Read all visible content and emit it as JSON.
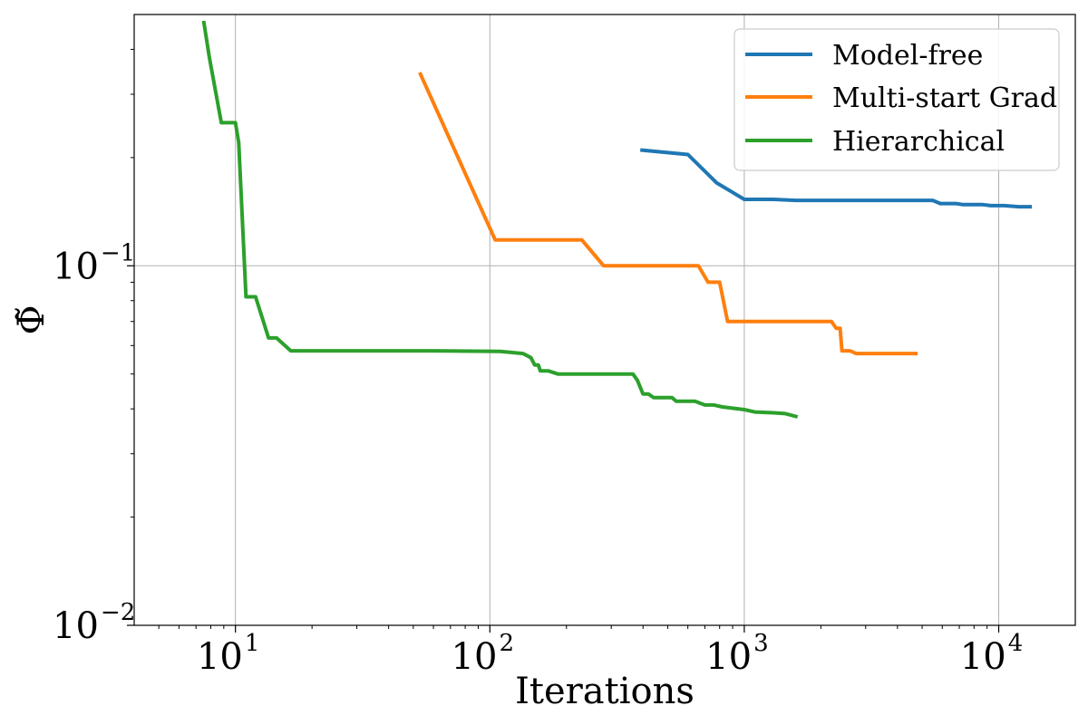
{
  "chart_data": {
    "type": "line",
    "title": "",
    "xlabel": "Iterations",
    "ylabel": "Φ̃",
    "xscale": "log",
    "yscale": "log",
    "xlim": [
      4,
      20000
    ],
    "ylim": [
      0.01,
      0.5
    ],
    "grid": true,
    "legend_position": "top-right",
    "x_major_ticks": [
      {
        "value": 10,
        "base": "10",
        "exp": "1"
      },
      {
        "value": 100,
        "base": "10",
        "exp": "2"
      },
      {
        "value": 1000,
        "base": "10",
        "exp": "3"
      },
      {
        "value": 10000,
        "base": "10",
        "exp": "4"
      }
    ],
    "y_major_ticks": [
      {
        "value": 0.01,
        "base": "10",
        "exp": "−2"
      },
      {
        "value": 0.1,
        "base": "10",
        "exp": "−1"
      }
    ],
    "series": [
      {
        "name": "Model-free",
        "color": "#1f77b4",
        "points": [
          [
            390,
            0.21
          ],
          [
            600,
            0.204
          ],
          [
            780,
            0.17
          ],
          [
            900,
            0.16
          ],
          [
            1000,
            0.153
          ],
          [
            1300,
            0.153
          ],
          [
            1600,
            0.152
          ],
          [
            3000,
            0.152
          ],
          [
            5500,
            0.152
          ],
          [
            5900,
            0.149
          ],
          [
            6800,
            0.149
          ],
          [
            7200,
            0.148
          ],
          [
            8600,
            0.148
          ],
          [
            9300,
            0.147
          ],
          [
            10500,
            0.147
          ],
          [
            12000,
            0.146
          ],
          [
            13500,
            0.146
          ]
        ]
      },
      {
        "name": "Multi-start Grad",
        "color": "#ff7f0e",
        "points": [
          [
            53,
            0.345
          ],
          [
            105,
            0.118
          ],
          [
            230,
            0.118
          ],
          [
            280,
            0.1
          ],
          [
            660,
            0.1
          ],
          [
            720,
            0.09
          ],
          [
            800,
            0.09
          ],
          [
            860,
            0.07
          ],
          [
            2200,
            0.07
          ],
          [
            2300,
            0.067
          ],
          [
            2380,
            0.067
          ],
          [
            2420,
            0.058
          ],
          [
            2600,
            0.058
          ],
          [
            2750,
            0.057
          ],
          [
            4800,
            0.057
          ]
        ]
      },
      {
        "name": "Hierarchical",
        "color": "#2ca02c",
        "points": [
          [
            7.5,
            0.48
          ],
          [
            7.9,
            0.38
          ],
          [
            8.8,
            0.25
          ],
          [
            10,
            0.25
          ],
          [
            10.3,
            0.22
          ],
          [
            11,
            0.082
          ],
          [
            12,
            0.082
          ],
          [
            13.5,
            0.063
          ],
          [
            14.5,
            0.063
          ],
          [
            16.5,
            0.058
          ],
          [
            60,
            0.058
          ],
          [
            110,
            0.0578
          ],
          [
            135,
            0.057
          ],
          [
            145,
            0.0555
          ],
          [
            150,
            0.053
          ],
          [
            155,
            0.053
          ],
          [
            158,
            0.051
          ],
          [
            170,
            0.051
          ],
          [
            185,
            0.05
          ],
          [
            200,
            0.05
          ],
          [
            365,
            0.05
          ],
          [
            380,
            0.048
          ],
          [
            400,
            0.044
          ],
          [
            420,
            0.044
          ],
          [
            440,
            0.043
          ],
          [
            520,
            0.043
          ],
          [
            540,
            0.042
          ],
          [
            640,
            0.042
          ],
          [
            700,
            0.041
          ],
          [
            760,
            0.041
          ],
          [
            820,
            0.0405
          ],
          [
            1000,
            0.0398
          ],
          [
            1100,
            0.0392
          ],
          [
            1300,
            0.039
          ],
          [
            1450,
            0.0388
          ],
          [
            1620,
            0.038
          ]
        ]
      }
    ]
  }
}
